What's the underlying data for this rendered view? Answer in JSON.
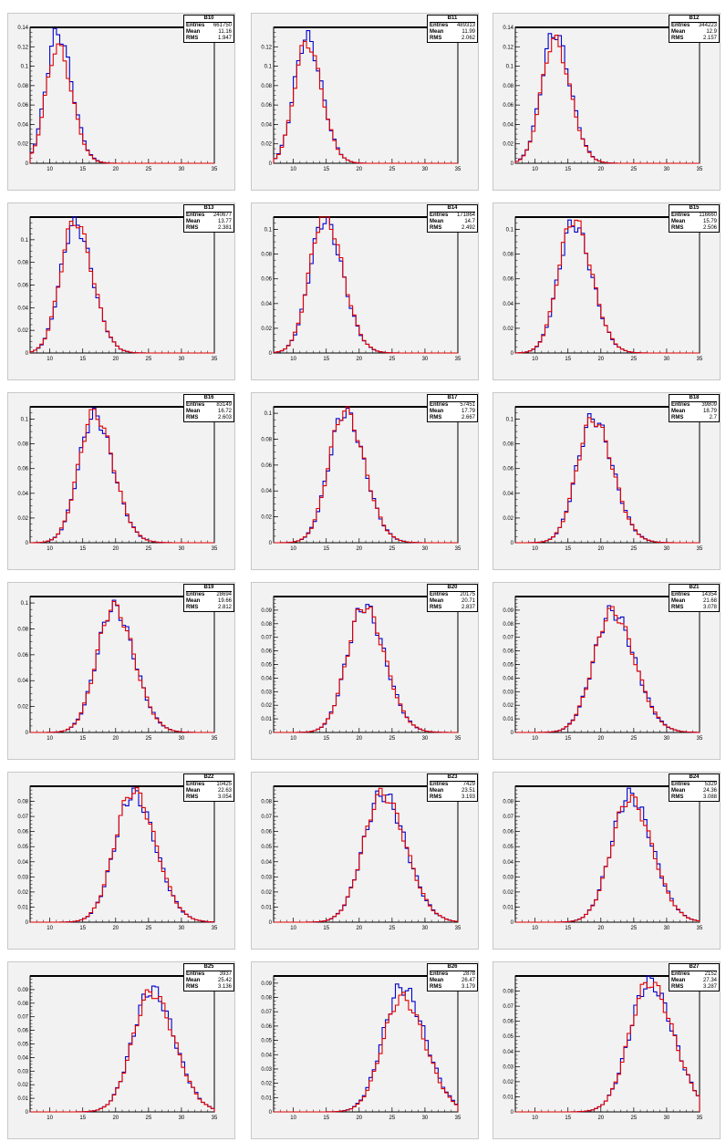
{
  "chart_data": [
    {
      "type": "line",
      "title": "B10",
      "xlim": [
        7,
        35
      ],
      "ylim": [
        0,
        0.14
      ],
      "ytick_labels": [
        "0",
        "0.02",
        "0.04",
        "0.06",
        "0.08",
        "0.1",
        "0.12",
        "0.14"
      ],
      "xtick_labels": [
        "10",
        "15",
        "20",
        "25",
        "30",
        "35"
      ],
      "stats": {
        "entries_label": "Entries",
        "entries": "661750",
        "mean_label": "Mean",
        "mean": "11.16",
        "rms_label": "RMS",
        "rms": "1.947"
      },
      "series": [
        {
          "color": "#0000cc",
          "mean": 11.16,
          "rms": 1.947,
          "peak": 0.135
        },
        {
          "color": "#e00000",
          "mean": 11.16,
          "rms": 1.947,
          "peak": 0.12
        }
      ]
    },
    {
      "type": "line",
      "title": "B11",
      "xlim": [
        7,
        35
      ],
      "ylim": [
        0,
        0.14
      ],
      "ytick_labels": [
        "0",
        "0.02",
        "0.04",
        "0.06",
        "0.08",
        "0.1",
        "0.12"
      ],
      "xtick_labels": [
        "10",
        "15",
        "20",
        "25",
        "30",
        "35"
      ],
      "stats": {
        "entries_label": "Entries",
        "entries": "489313",
        "mean_label": "Mean",
        "mean": "11.99",
        "rms_label": "RMS",
        "rms": "2.062"
      },
      "series": [
        {
          "color": "#0000cc",
          "mean": 11.99,
          "rms": 2.062,
          "peak": 0.13
        },
        {
          "color": "#e00000",
          "mean": 11.99,
          "rms": 2.062,
          "peak": 0.125
        }
      ]
    },
    {
      "type": "line",
      "title": "B12",
      "xlim": [
        7,
        35
      ],
      "ylim": [
        0,
        0.14
      ],
      "ytick_labels": [
        "0",
        "0.02",
        "0.04",
        "0.06",
        "0.08",
        "0.1",
        "0.12",
        "0.14"
      ],
      "xtick_labels": [
        "10",
        "15",
        "20",
        "25",
        "30",
        "35"
      ],
      "stats": {
        "entries_label": "Entries",
        "entries": "344223",
        "mean_label": "Mean",
        "mean": "12.9",
        "rms_label": "RMS",
        "rms": "2.157"
      },
      "series": [
        {
          "color": "#0000cc",
          "mean": 12.9,
          "rms": 2.157,
          "peak": 0.135
        },
        {
          "color": "#e00000",
          "mean": 12.9,
          "rms": 2.157,
          "peak": 0.127
        }
      ]
    },
    {
      "type": "line",
      "title": "B13",
      "xlim": [
        7,
        35
      ],
      "ylim": [
        0,
        0.12
      ],
      "ytick_labels": [
        "0",
        "0.02",
        "0.04",
        "0.06",
        "0.08",
        "0.1"
      ],
      "xtick_labels": [
        "10",
        "15",
        "20",
        "25",
        "30",
        "35"
      ],
      "stats": {
        "entries_label": "Entries",
        "entries": "240677",
        "mean_label": "Mean",
        "mean": "13.77",
        "rms_label": "RMS",
        "rms": "2.381"
      },
      "series": [
        {
          "color": "#0000cc",
          "mean": 13.77,
          "rms": 2.381,
          "peak": 0.115
        },
        {
          "color": "#e00000",
          "mean": 13.77,
          "rms": 2.381,
          "peak": 0.117
        }
      ]
    },
    {
      "type": "line",
      "title": "B14",
      "xlim": [
        7,
        35
      ],
      "ylim": [
        0,
        0.11
      ],
      "ytick_labels": [
        "0",
        "0.02",
        "0.04",
        "0.06",
        "0.08",
        "0.1"
      ],
      "xtick_labels": [
        "10",
        "15",
        "20",
        "25",
        "30",
        "35"
      ],
      "stats": {
        "entries_label": "Entries",
        "entries": "171864",
        "mean_label": "Mean",
        "mean": "14.7",
        "rms_label": "RMS",
        "rms": "2.492"
      },
      "series": [
        {
          "color": "#0000cc",
          "mean": 14.7,
          "rms": 2.492,
          "peak": 0.108
        },
        {
          "color": "#e00000",
          "mean": 14.7,
          "rms": 2.492,
          "peak": 0.112
        }
      ]
    },
    {
      "type": "line",
      "title": "B15",
      "xlim": [
        7,
        35
      ],
      "ylim": [
        0,
        0.11
      ],
      "ytick_labels": [
        "0",
        "0.02",
        "0.04",
        "0.06",
        "0.08",
        "0.1"
      ],
      "xtick_labels": [
        "10",
        "15",
        "20",
        "25",
        "30",
        "35"
      ],
      "stats": {
        "entries_label": "Entries",
        "entries": "116660",
        "mean_label": "Mean",
        "mean": "15.79",
        "rms_label": "RMS",
        "rms": "2.506"
      },
      "series": [
        {
          "color": "#0000cc",
          "mean": 15.79,
          "rms": 2.506,
          "peak": 0.105
        },
        {
          "color": "#e00000",
          "mean": 15.79,
          "rms": 2.506,
          "peak": 0.108
        }
      ]
    },
    {
      "type": "line",
      "title": "B16",
      "xlim": [
        7,
        35
      ],
      "ylim": [
        0,
        0.11
      ],
      "ytick_labels": [
        "0",
        "0.02",
        "0.04",
        "0.06",
        "0.08",
        "0.1"
      ],
      "xtick_labels": [
        "10",
        "15",
        "20",
        "25",
        "30",
        "35"
      ],
      "stats": {
        "entries_label": "Entries",
        "entries": "83149",
        "mean_label": "Mean",
        "mean": "16.72",
        "rms_label": "RMS",
        "rms": "2.603"
      },
      "series": [
        {
          "color": "#0000cc",
          "mean": 16.72,
          "rms": 2.603,
          "peak": 0.103
        },
        {
          "color": "#e00000",
          "mean": 16.72,
          "rms": 2.603,
          "peak": 0.105
        }
      ]
    },
    {
      "type": "line",
      "title": "B17",
      "xlim": [
        7,
        35
      ],
      "ylim": [
        0,
        0.105
      ],
      "ytick_labels": [
        "0",
        "0.02",
        "0.04",
        "0.06",
        "0.08",
        "0.1"
      ],
      "xtick_labels": [
        "10",
        "15",
        "20",
        "25",
        "30",
        "35"
      ],
      "stats": {
        "entries_label": "Entries",
        "entries": "57451",
        "mean_label": "Mean",
        "mean": "17.79",
        "rms_label": "RMS",
        "rms": "2.667"
      },
      "series": [
        {
          "color": "#0000cc",
          "mean": 17.79,
          "rms": 2.667,
          "peak": 0.101
        },
        {
          "color": "#e00000",
          "mean": 17.79,
          "rms": 2.667,
          "peak": 0.102
        }
      ]
    },
    {
      "type": "line",
      "title": "B18",
      "xlim": [
        7,
        35
      ],
      "ylim": [
        0,
        0.11
      ],
      "ytick_labels": [
        "0",
        "0.02",
        "0.04",
        "0.06",
        "0.08",
        "0.1"
      ],
      "xtick_labels": [
        "10",
        "15",
        "20",
        "25",
        "30",
        "35"
      ],
      "stats": {
        "entries_label": "Entries",
        "entries": "39809",
        "mean_label": "Mean",
        "mean": "18.79",
        "rms_label": "RMS",
        "rms": "2.7"
      },
      "series": [
        {
          "color": "#0000cc",
          "mean": 18.79,
          "rms": 2.7,
          "peak": 0.101
        },
        {
          "color": "#e00000",
          "mean": 18.79,
          "rms": 2.7,
          "peak": 0.1
        }
      ]
    },
    {
      "type": "line",
      "title": "B19",
      "xlim": [
        7,
        35
      ],
      "ylim": [
        0,
        0.105
      ],
      "ytick_labels": [
        "0",
        "0.02",
        "0.04",
        "0.06",
        "0.08",
        "0.1"
      ],
      "xtick_labels": [
        "10",
        "15",
        "20",
        "25",
        "30",
        "35"
      ],
      "stats": {
        "entries_label": "Entries",
        "entries": "28694",
        "mean_label": "Mean",
        "mean": "19.66",
        "rms_label": "RMS",
        "rms": "2.812"
      },
      "series": [
        {
          "color": "#0000cc",
          "mean": 19.66,
          "rms": 2.812,
          "peak": 0.097
        },
        {
          "color": "#e00000",
          "mean": 19.66,
          "rms": 2.812,
          "peak": 0.097
        }
      ]
    },
    {
      "type": "line",
      "title": "B20",
      "xlim": [
        7,
        35
      ],
      "ylim": [
        0,
        0.1
      ],
      "ytick_labels": [
        "0",
        "0.01",
        "0.02",
        "0.03",
        "0.04",
        "0.05",
        "0.06",
        "0.07",
        "0.08",
        "0.09"
      ],
      "xtick_labels": [
        "10",
        "15",
        "20",
        "25",
        "30",
        "35"
      ],
      "stats": {
        "entries_label": "Entries",
        "entries": "20175",
        "mean_label": "Mean",
        "mean": "20.71",
        "rms_label": "RMS",
        "rms": "2.837"
      },
      "series": [
        {
          "color": "#0000cc",
          "mean": 20.71,
          "rms": 2.837,
          "peak": 0.093
        },
        {
          "color": "#e00000",
          "mean": 20.71,
          "rms": 2.837,
          "peak": 0.093
        }
      ]
    },
    {
      "type": "line",
      "title": "B21",
      "xlim": [
        7,
        35
      ],
      "ylim": [
        0,
        0.1
      ],
      "ytick_labels": [
        "0",
        "0.01",
        "0.02",
        "0.03",
        "0.04",
        "0.05",
        "0.06",
        "0.07",
        "0.08",
        "0.09"
      ],
      "xtick_labels": [
        "10",
        "15",
        "20",
        "25",
        "30",
        "35"
      ],
      "stats": {
        "entries_label": "Entries",
        "entries": "14354",
        "mean_label": "Mean",
        "mean": "21.68",
        "rms_label": "RMS",
        "rms": "3.078"
      },
      "series": [
        {
          "color": "#0000cc",
          "mean": 21.68,
          "rms": 3.078,
          "peak": 0.089
        },
        {
          "color": "#e00000",
          "mean": 21.68,
          "rms": 3.078,
          "peak": 0.089
        }
      ]
    },
    {
      "type": "line",
      "title": "B22",
      "xlim": [
        7,
        35
      ],
      "ylim": [
        0,
        0.09
      ],
      "ytick_labels": [
        "0",
        "0.01",
        "0.02",
        "0.03",
        "0.04",
        "0.05",
        "0.06",
        "0.07",
        "0.08"
      ],
      "xtick_labels": [
        "10",
        "15",
        "20",
        "25",
        "30",
        "35"
      ],
      "stats": {
        "entries_label": "Entries",
        "entries": "10425",
        "mean_label": "Mean",
        "mean": "22.63",
        "rms_label": "RMS",
        "rms": "3.054"
      },
      "series": [
        {
          "color": "#0000cc",
          "mean": 22.63,
          "rms": 3.054,
          "peak": 0.085
        },
        {
          "color": "#e00000",
          "mean": 22.63,
          "rms": 3.054,
          "peak": 0.087
        }
      ]
    },
    {
      "type": "line",
      "title": "B23",
      "xlim": [
        7,
        35
      ],
      "ylim": [
        0,
        0.09
      ],
      "ytick_labels": [
        "0",
        "0.01",
        "0.02",
        "0.03",
        "0.04",
        "0.05",
        "0.06",
        "0.07",
        "0.08"
      ],
      "xtick_labels": [
        "10",
        "15",
        "20",
        "25",
        "30",
        "35"
      ],
      "stats": {
        "entries_label": "Entries",
        "entries": "7429",
        "mean_label": "Mean",
        "mean": "23.51",
        "rms_label": "RMS",
        "rms": "3.193"
      },
      "series": [
        {
          "color": "#0000cc",
          "mean": 23.51,
          "rms": 3.193,
          "peak": 0.085
        },
        {
          "color": "#e00000",
          "mean": 23.51,
          "rms": 3.193,
          "peak": 0.085
        }
      ]
    },
    {
      "type": "line",
      "title": "B24",
      "xlim": [
        7,
        35
      ],
      "ylim": [
        0,
        0.09
      ],
      "ytick_labels": [
        "0",
        "0.01",
        "0.02",
        "0.03",
        "0.04",
        "0.05",
        "0.06",
        "0.07",
        "0.08"
      ],
      "xtick_labels": [
        "10",
        "15",
        "20",
        "25",
        "30",
        "35"
      ],
      "stats": {
        "entries_label": "Entries",
        "entries": "5329",
        "mean_label": "Mean",
        "mean": "24.36",
        "rms_label": "RMS",
        "rms": "3.088"
      },
      "series": [
        {
          "color": "#0000cc",
          "mean": 24.36,
          "rms": 3.088,
          "peak": 0.084
        },
        {
          "color": "#e00000",
          "mean": 24.36,
          "rms": 3.088,
          "peak": 0.082
        }
      ]
    },
    {
      "type": "line",
      "title": "B25",
      "xlim": [
        7,
        35
      ],
      "ylim": [
        0,
        0.1
      ],
      "ytick_labels": [
        "0",
        "0.01",
        "0.02",
        "0.03",
        "0.04",
        "0.05",
        "0.06",
        "0.07",
        "0.08",
        "0.09"
      ],
      "xtick_labels": [
        "10",
        "15",
        "20",
        "25",
        "30",
        "35"
      ],
      "stats": {
        "entries_label": "Entries",
        "entries": "3937",
        "mean_label": "Mean",
        "mean": "25.42",
        "rms_label": "RMS",
        "rms": "3.136"
      },
      "series": [
        {
          "color": "#0000cc",
          "mean": 25.42,
          "rms": 3.136,
          "peak": 0.09
        },
        {
          "color": "#e00000",
          "mean": 25.42,
          "rms": 3.136,
          "peak": 0.088
        }
      ]
    },
    {
      "type": "line",
      "title": "B26",
      "xlim": [
        7,
        35
      ],
      "ylim": [
        0,
        0.095
      ],
      "ytick_labels": [
        "0",
        "0.01",
        "0.02",
        "0.03",
        "0.04",
        "0.05",
        "0.06",
        "0.07",
        "0.08",
        "0.09"
      ],
      "xtick_labels": [
        "10",
        "15",
        "20",
        "25",
        "30",
        "35"
      ],
      "stats": {
        "entries_label": "Entries",
        "entries": "2878",
        "mean_label": "Mean",
        "mean": "26.47",
        "rms_label": "RMS",
        "rms": "3.179"
      },
      "series": [
        {
          "color": "#0000cc",
          "mean": 26.47,
          "rms": 3.179,
          "peak": 0.087
        },
        {
          "color": "#e00000",
          "mean": 26.47,
          "rms": 3.179,
          "peak": 0.08
        }
      ]
    },
    {
      "type": "line",
      "title": "B27",
      "xlim": [
        7,
        35
      ],
      "ylim": [
        0,
        0.09
      ],
      "ytick_labels": [
        "0",
        "0.01",
        "0.02",
        "0.03",
        "0.04",
        "0.05",
        "0.06",
        "0.07",
        "0.08"
      ],
      "xtick_labels": [
        "10",
        "15",
        "20",
        "25",
        "30",
        "35"
      ],
      "stats": {
        "entries_label": "Entries",
        "entries": "2152",
        "mean_label": "Mean",
        "mean": "27.34",
        "rms_label": "RMS",
        "rms": "3.287"
      },
      "series": [
        {
          "color": "#0000cc",
          "mean": 27.34,
          "rms": 3.287,
          "peak": 0.086
        },
        {
          "color": "#e00000",
          "mean": 27.34,
          "rms": 3.287,
          "peak": 0.086
        }
      ]
    }
  ]
}
